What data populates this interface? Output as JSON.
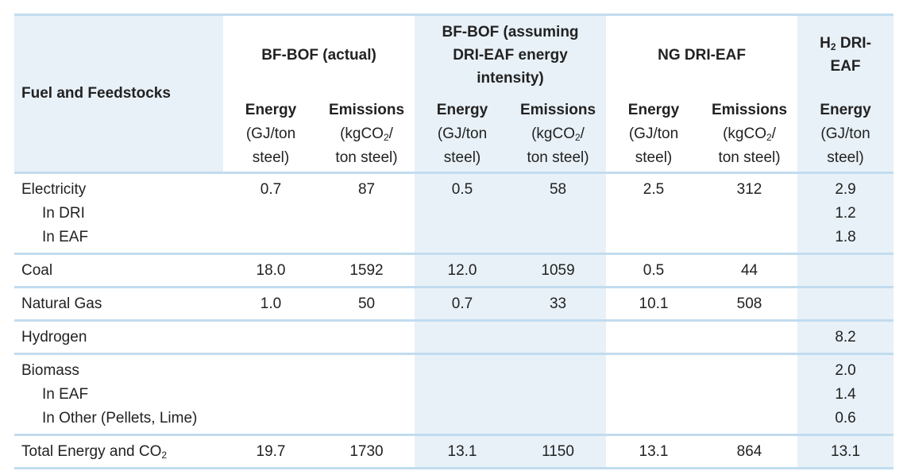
{
  "table": {
    "row_header_label": "Fuel and Feedstocks",
    "groups": [
      {
        "line1": "BF-BOF (actual)",
        "line2": "",
        "line3": ""
      },
      {
        "line1": "BF-BOF (assuming",
        "line2": "DRI-EAF energy",
        "line3": "intensity)"
      },
      {
        "line1": "NG DRI-EAF",
        "line2": "",
        "line3": ""
      },
      {
        "line1": "H",
        "line1_sub": "2",
        "line1_rest": " DRI-",
        "line2": "EAF"
      }
    ],
    "energy_col": {
      "title": "Energy",
      "unit1": "(GJ/ton",
      "unit2": "steel)"
    },
    "emissions_col": {
      "title": "Emissions",
      "unit1_a": "(kgCO",
      "unit1_sub": "2",
      "unit1_b": "/",
      "unit2": "ton steel)"
    },
    "rows": [
      {
        "labels": [
          "Electricity",
          "In DRI",
          "In EAF"
        ],
        "cells": [
          [
            "0.7"
          ],
          [
            "87"
          ],
          [
            "0.5"
          ],
          [
            "58"
          ],
          [
            "2.5"
          ],
          [
            "312"
          ],
          [
            "2.9",
            "1.2",
            "1.8"
          ]
        ]
      },
      {
        "labels": [
          "Coal"
        ],
        "cells": [
          [
            "18.0"
          ],
          [
            "1592"
          ],
          [
            "12.0"
          ],
          [
            "1059"
          ],
          [
            "0.5"
          ],
          [
            "44"
          ],
          [
            ""
          ]
        ]
      },
      {
        "labels": [
          "Natural Gas"
        ],
        "cells": [
          [
            "1.0"
          ],
          [
            "50"
          ],
          [
            "0.7"
          ],
          [
            "33"
          ],
          [
            "10.1"
          ],
          [
            "508"
          ],
          [
            ""
          ]
        ]
      },
      {
        "labels": [
          "Hydrogen"
        ],
        "cells": [
          [
            ""
          ],
          [
            ""
          ],
          [
            ""
          ],
          [
            ""
          ],
          [
            ""
          ],
          [
            ""
          ],
          [
            "8.2"
          ]
        ]
      },
      {
        "labels": [
          "Biomass",
          "In EAF",
          "In Other (Pellets, Lime)"
        ],
        "cells": [
          [
            ""
          ],
          [
            ""
          ],
          [
            ""
          ],
          [
            ""
          ],
          [
            ""
          ],
          [
            ""
          ],
          [
            "2.0",
            "1.4",
            "0.6"
          ]
        ]
      }
    ],
    "total": {
      "label": "Total Energy and CO",
      "label_sub": "2",
      "cells": [
        "19.7",
        "1730",
        "13.1",
        "1150",
        "13.1",
        "864",
        "13.1"
      ]
    }
  },
  "colors": {
    "light_blue_fill": "#e8f1f8",
    "rule_blue": "#c2dcef"
  }
}
